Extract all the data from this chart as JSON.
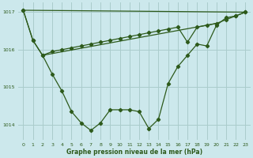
{
  "xlabel": "Graphe pression niveau de la mer (hPa)",
  "background_color": "#cce8ec",
  "grid_color": "#aacccc",
  "line_color": "#2d5a1b",
  "ylim": [
    1013.6,
    1017.25
  ],
  "xlim": [
    -0.5,
    23.5
  ],
  "yticks": [
    1014,
    1015,
    1016,
    1017
  ],
  "xticks": [
    0,
    1,
    2,
    3,
    4,
    5,
    6,
    7,
    8,
    9,
    10,
    11,
    12,
    13,
    14,
    15,
    16,
    17,
    18,
    19,
    20,
    21,
    22,
    23
  ],
  "series1_x": [
    0,
    1,
    2,
    3,
    4,
    5,
    6,
    7,
    8,
    9,
    10,
    11,
    12,
    13,
    14,
    15,
    16,
    17,
    18,
    19,
    20,
    21,
    22,
    23
  ],
  "series1_y": [
    1017.05,
    1016.25,
    1015.85,
    1015.35,
    1014.9,
    1014.35,
    1014.05,
    1013.85,
    1014.05,
    1014.4,
    1014.4,
    1014.4,
    1014.35,
    1013.9,
    1014.15,
    1015.1,
    1015.55,
    1015.85,
    1016.15,
    1016.1,
    1016.65,
    1016.85,
    1016.9,
    1017.0
  ],
  "series2_x": [
    0,
    1,
    2,
    3,
    4,
    5,
    6,
    7,
    8,
    9,
    10,
    11,
    12,
    13,
    14,
    15,
    16,
    17,
    18,
    19,
    20,
    21,
    22,
    23
  ],
  "series2_y": [
    1017.05,
    1016.25,
    1015.85,
    1015.95,
    1016.0,
    1016.05,
    1016.1,
    1016.15,
    1016.2,
    1016.25,
    1016.3,
    1016.35,
    1016.4,
    1016.45,
    1016.5,
    1016.55,
    1016.6,
    1016.2,
    1016.6,
    1016.65,
    1016.7,
    1016.8,
    1016.9,
    1017.0
  ],
  "series3_x": [
    0,
    23
  ],
  "series3_y": [
    1017.05,
    1017.0
  ],
  "series4_x": [
    2,
    20
  ],
  "series4_y": [
    1015.85,
    1016.7
  ]
}
